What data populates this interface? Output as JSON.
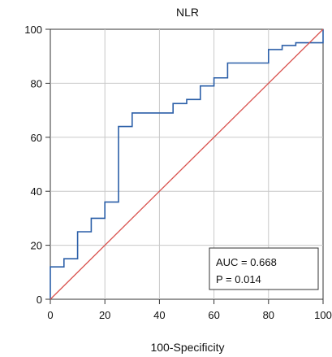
{
  "chart_data": {
    "type": "line",
    "title": "NLR",
    "xlabel": "100-Specificity",
    "ylabel": "",
    "xlim": [
      0,
      100
    ],
    "ylim": [
      0,
      100
    ],
    "x_ticks": [
      0,
      20,
      40,
      60,
      80,
      100
    ],
    "y_ticks": [
      0,
      20,
      40,
      60,
      80,
      100
    ],
    "grid": true,
    "series": [
      {
        "color": "#2b5fa8",
        "points": [
          [
            0,
            0
          ],
          [
            0,
            12
          ],
          [
            5,
            12
          ],
          [
            5,
            15
          ],
          [
            10,
            15
          ],
          [
            10,
            25
          ],
          [
            15,
            25
          ],
          [
            15,
            30
          ],
          [
            20,
            30
          ],
          [
            20,
            36
          ],
          [
            25,
            36
          ],
          [
            25,
            64
          ],
          [
            30,
            64
          ],
          [
            30,
            69
          ],
          [
            45,
            69
          ],
          [
            45,
            72.5
          ],
          [
            50,
            72.5
          ],
          [
            50,
            74
          ],
          [
            55,
            74
          ],
          [
            55,
            79
          ],
          [
            60,
            79
          ],
          [
            60,
            82
          ],
          [
            65,
            82
          ],
          [
            65,
            87.5
          ],
          [
            80,
            87.5
          ],
          [
            80,
            92.5
          ],
          [
            85,
            92.5
          ],
          [
            85,
            94
          ],
          [
            90,
            94
          ],
          [
            90,
            95
          ],
          [
            100,
            95
          ],
          [
            100,
            100
          ]
        ]
      },
      {
        "color": "#d9534f",
        "points": [
          [
            0,
            0
          ],
          [
            100,
            100
          ]
        ]
      }
    ],
    "annotations": {
      "auc_text": "AUC = 0.668",
      "p_text": "P = 0.014",
      "placement": "bottom-right"
    }
  }
}
